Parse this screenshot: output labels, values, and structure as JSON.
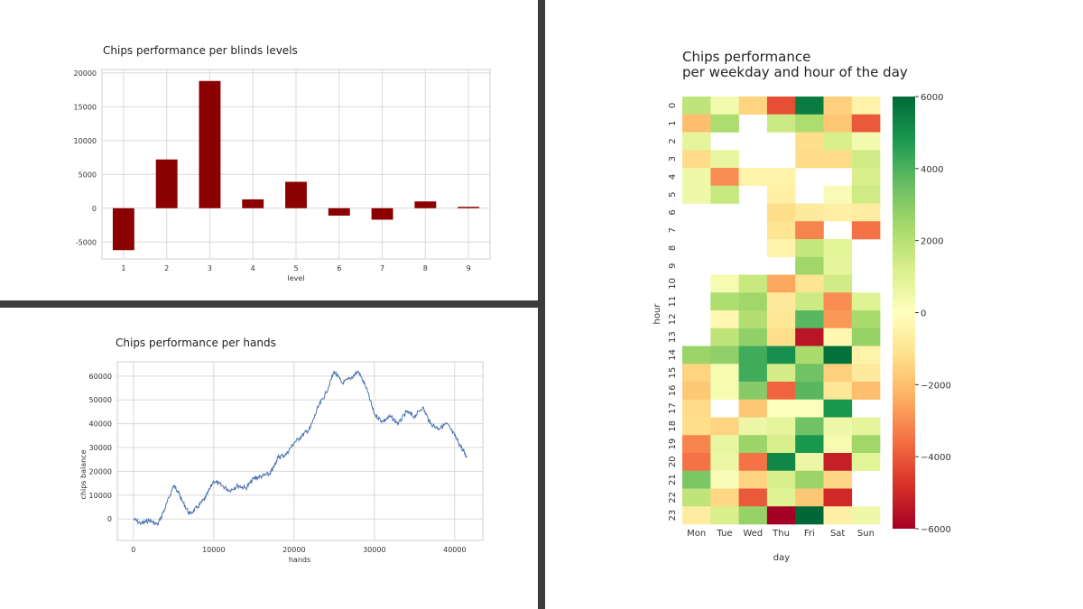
{
  "colors": {
    "bar": "#8b0000",
    "line": "#4c72b0",
    "divider": "#3c3c3c",
    "grid": "#d9d9d9"
  },
  "chart_data": [
    {
      "type": "bar",
      "title": "Chips performance per blinds levels",
      "xlabel": "level",
      "ylabel": "",
      "categories": [
        "1",
        "2",
        "3",
        "4",
        "5",
        "6",
        "7",
        "8",
        "9"
      ],
      "values": [
        -6200,
        7200,
        18800,
        1300,
        3900,
        -1100,
        -1700,
        1000,
        200
      ],
      "ylim": [
        -7500,
        20500
      ],
      "yticks": [
        -5000,
        0,
        5000,
        10000,
        15000,
        20000
      ],
      "grid": true
    },
    {
      "type": "line",
      "title": "Chips performance per hands",
      "xlabel": "hands",
      "ylabel": "chips balance",
      "xlim": [
        -2000,
        43500
      ],
      "ylim": [
        -9000,
        66000
      ],
      "xticks": [
        0,
        10000,
        20000,
        30000,
        40000
      ],
      "yticks": [
        0,
        10000,
        20000,
        30000,
        40000,
        50000,
        60000
      ],
      "grid": true,
      "x": [
        0,
        1000,
        2000,
        3000,
        4000,
        5000,
        5500,
        6000,
        7000,
        8000,
        9000,
        10000,
        11000,
        12000,
        13000,
        14000,
        15000,
        16000,
        17000,
        17500,
        18000,
        19000,
        20000,
        21000,
        22000,
        23000,
        24000,
        25000,
        26000,
        27000,
        28000,
        29000,
        30000,
        31000,
        32000,
        33000,
        34000,
        35000,
        36000,
        37000,
        38000,
        39000,
        40000,
        41000,
        41500
      ],
      "y": [
        0,
        -2000,
        -500,
        -2500,
        5000,
        14000,
        12000,
        8000,
        2000,
        5000,
        9000,
        16000,
        14000,
        12000,
        14000,
        13000,
        17000,
        18000,
        19000,
        22000,
        26000,
        27000,
        32000,
        35000,
        38000,
        47000,
        53000,
        62000,
        57000,
        59000,
        62000,
        55000,
        44000,
        41000,
        43000,
        40000,
        45000,
        43000,
        47000,
        40000,
        38000,
        40000,
        35000,
        29000,
        26000
      ]
    },
    {
      "type": "heatmap",
      "title": "Chips performance\nper weekday and hour of the day",
      "title_lines": [
        "Chips performance",
        "per weekday and hour of the day"
      ],
      "xlabel": "day",
      "ylabel": "hour",
      "x_categories": [
        "Mon",
        "Tue",
        "Wed",
        "Thu",
        "Fri",
        "Sat",
        "Sun"
      ],
      "y_categories": [
        "0",
        "1",
        "2",
        "3",
        "4",
        "5",
        "6",
        "7",
        "8",
        "9",
        "10",
        "11",
        "12",
        "13",
        "14",
        "15",
        "16",
        "17",
        "18",
        "19",
        "20",
        "21",
        "22",
        "23"
      ],
      "value_range": [
        -6000,
        6000
      ],
      "colorbar_ticks": [
        -6000,
        -4000,
        -2000,
        0,
        2000,
        4000,
        6000
      ],
      "colorbar_tick_labels": [
        "−6000",
        "−4000",
        "−2000",
        "0",
        "2000",
        "4000",
        "6000"
      ],
      "colormap": "RdYlGn",
      "values": [
        [
          1800,
          400,
          -1500,
          -4200,
          5500,
          -1600,
          -500
        ],
        [
          -2000,
          2200,
          null,
          1500,
          2200,
          -1800,
          -4000
        ],
        [
          800,
          null,
          null,
          null,
          -1200,
          1200,
          400
        ],
        [
          -1300,
          700,
          null,
          null,
          -1300,
          -1300,
          1400
        ],
        [
          500,
          -3000,
          -500,
          -500,
          null,
          null,
          1200
        ],
        [
          500,
          1600,
          null,
          -600,
          null,
          200,
          1400
        ],
        [
          null,
          null,
          null,
          -1200,
          -800,
          -600,
          -700
        ],
        [
          null,
          null,
          null,
          -1000,
          -3200,
          null,
          -3500
        ],
        [
          null,
          null,
          null,
          -500,
          1700,
          900,
          null
        ],
        [
          null,
          null,
          null,
          null,
          2500,
          800,
          null
        ],
        [
          null,
          300,
          1600,
          -2500,
          -1000,
          1400,
          null
        ],
        [
          null,
          2200,
          2500,
          -800,
          1500,
          -3000,
          1000
        ],
        [
          null,
          -300,
          2100,
          -900,
          3800,
          -2800,
          2300
        ],
        [
          null,
          1800,
          2800,
          -1200,
          -5500,
          -300,
          2700
        ],
        [
          2600,
          2800,
          4200,
          5000,
          2300,
          5800,
          -500
        ],
        [
          -1500,
          300,
          4200,
          1300,
          3400,
          -1600,
          -800
        ],
        [
          -1800,
          300,
          3000,
          -3800,
          3800,
          -900,
          -2000
        ],
        [
          -1300,
          null,
          -1800,
          100,
          100,
          4800,
          null
        ],
        [
          -1200,
          -1500,
          600,
          800,
          3400,
          500,
          800
        ],
        [
          -3200,
          700,
          2600,
          1200,
          4800,
          300,
          2500
        ],
        [
          -3500,
          600,
          -3500,
          5200,
          600,
          -5200,
          900
        ],
        [
          3200,
          200,
          -1500,
          1200,
          2600,
          -1400,
          null
        ],
        [
          1800,
          -1400,
          -4000,
          1000,
          -1800,
          -5000,
          null
        ],
        [
          -700,
          1200,
          2700,
          -6000,
          6000,
          -600,
          500
        ]
      ]
    }
  ]
}
